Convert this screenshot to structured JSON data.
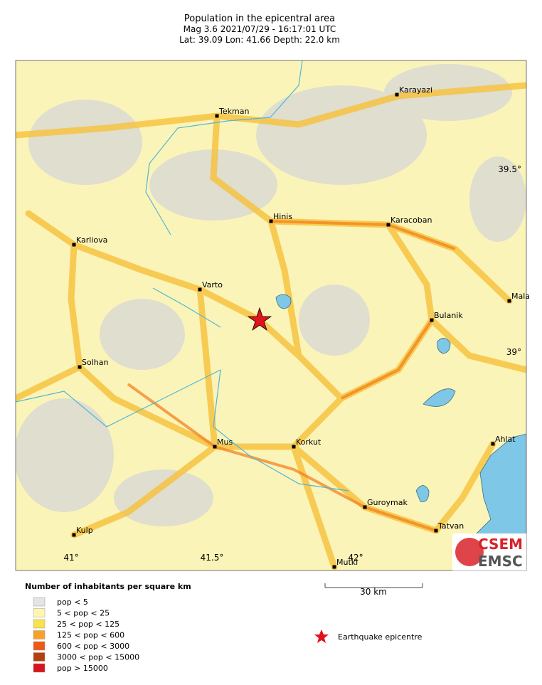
{
  "header": {
    "title": "Population in the epicentral area",
    "line2": "Mag 3.6  2021/07/29 - 16:17:01 UTC",
    "line3": "Lat: 39.09   Lon:  41.66     Depth:  22.0 km"
  },
  "map": {
    "cities": [
      "Karayazi",
      "Tekman",
      "Hinis",
      "Karacoban",
      "Karliova",
      "Varto",
      "Mala",
      "Bulanik",
      "Solhan",
      "Mus",
      "Korkut",
      "Ahlat",
      "Guroymak",
      "Tatvan",
      "Kulp",
      "Mutki"
    ],
    "lat_labels": [
      "39.5°",
      "39°"
    ],
    "lon_labels": [
      "41°",
      "41.5°",
      "42°"
    ],
    "logo": [
      "CSEM",
      "EMSC"
    ]
  },
  "legend": {
    "title": "Number of inhabitants per square km",
    "entries": [
      "pop < 5",
      "5 < pop < 25",
      "25 < pop < 125",
      "125 < pop < 600",
      "600 < pop < 3000",
      "3000 < pop < 15000",
      "pop > 15000"
    ],
    "scale": "30 km",
    "epicentre": "Earthquake epicentre"
  }
}
